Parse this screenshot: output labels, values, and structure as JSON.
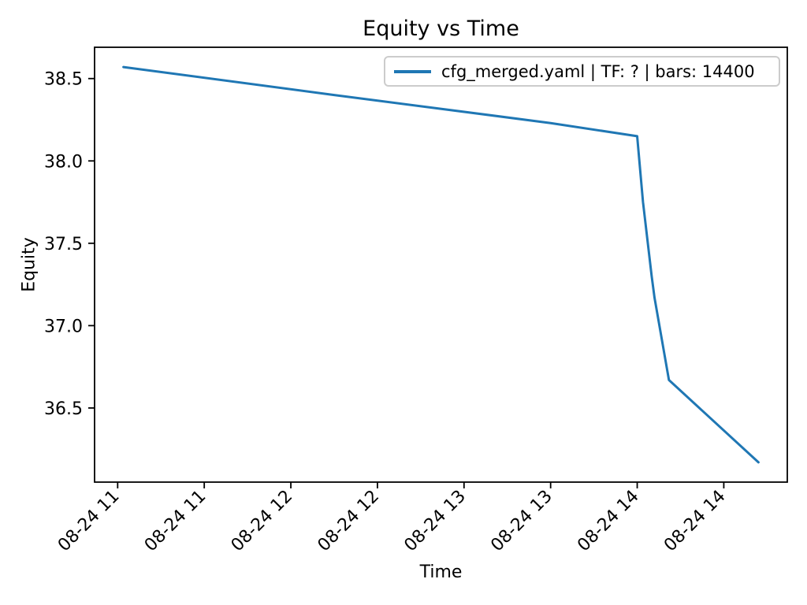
{
  "figure": {
    "title": "Equity vs Time",
    "xlabel": "Time",
    "ylabel": "Equity"
  },
  "legend": {
    "label": "cfg_merged.yaml | TF: ? | bars: 14400",
    "position": "upper right"
  },
  "colors": {
    "line": "#1f77b4",
    "axis": "#000000",
    "tick_label": "#000000",
    "legend_border": "#cccccc",
    "background": "#ffffff"
  },
  "chart_data": {
    "type": "line",
    "title": "Equity vs Time",
    "xlabel": "Time",
    "ylabel": "Equity",
    "grid": false,
    "legend_position": "upper right",
    "xlim": [
      "10:52",
      "14:52"
    ],
    "ylim": [
      36.05,
      38.69
    ],
    "y_ticks": [
      36.5,
      37.0,
      37.5,
      38.0,
      38.5
    ],
    "x_ticks": [
      {
        "label": "08-24 11",
        "time": "11:00"
      },
      {
        "label": "08-24 11",
        "time": "11:30"
      },
      {
        "label": "08-24 12",
        "time": "12:00"
      },
      {
        "label": "08-24 12",
        "time": "12:30"
      },
      {
        "label": "08-24 13",
        "time": "13:00"
      },
      {
        "label": "08-24 13",
        "time": "13:30"
      },
      {
        "label": "08-24 14",
        "time": "14:00"
      },
      {
        "label": "08-24 14",
        "time": "14:30"
      }
    ],
    "series": [
      {
        "name": "cfg_merged.yaml | TF: ? | bars: 14400",
        "color": "#1f77b4",
        "points": [
          {
            "time": "08-24 11:02",
            "equity": 38.57
          },
          {
            "time": "08-24 12:15",
            "equity": 38.4
          },
          {
            "time": "08-24 13:30",
            "equity": 38.23
          },
          {
            "time": "08-24 14:00",
            "equity": 38.15
          },
          {
            "time": "08-24 14:02",
            "equity": 37.75
          },
          {
            "time": "08-24 14:05",
            "equity": 37.3
          },
          {
            "time": "08-24 14:06",
            "equity": 37.17
          },
          {
            "time": "08-24 14:11",
            "equity": 36.67
          },
          {
            "time": "08-24 14:42",
            "equity": 36.17
          }
        ]
      }
    ]
  }
}
